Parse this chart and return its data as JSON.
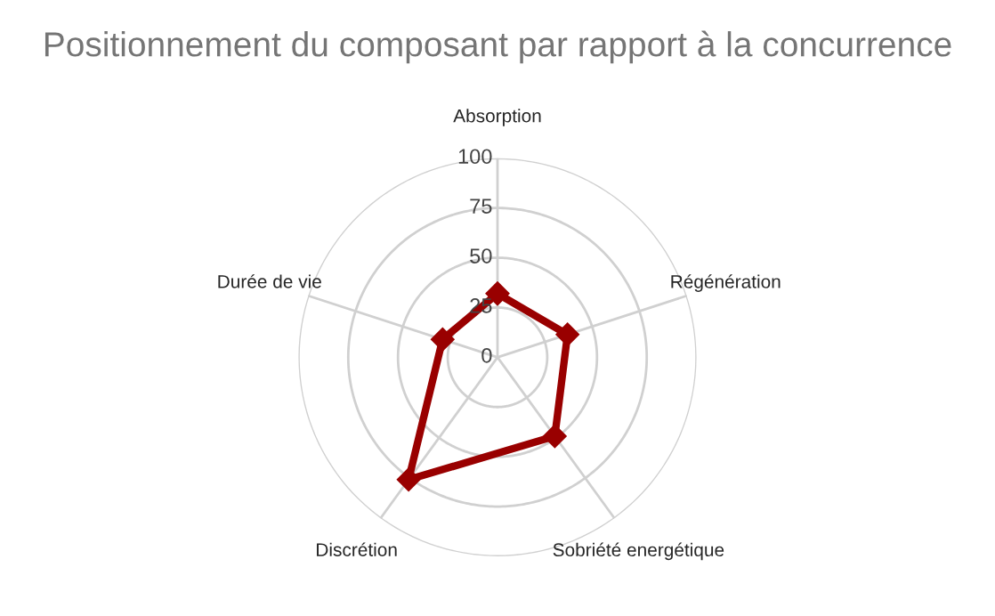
{
  "chart_data": {
    "type": "radar",
    "title": "Positionnement du composant par rapport à la concurrence",
    "categories": [
      "Absorption",
      "Régénération",
      "Sobriété energétique",
      "Discrétion",
      "Durée de vie"
    ],
    "series": [
      {
        "color": "#990000",
        "values": [
          32,
          37,
          49,
          76,
          29
        ]
      }
    ],
    "ylim": [
      0,
      100
    ],
    "yticks": [
      0,
      25,
      50,
      75,
      100
    ],
    "marker": "diamond",
    "grid": true
  }
}
